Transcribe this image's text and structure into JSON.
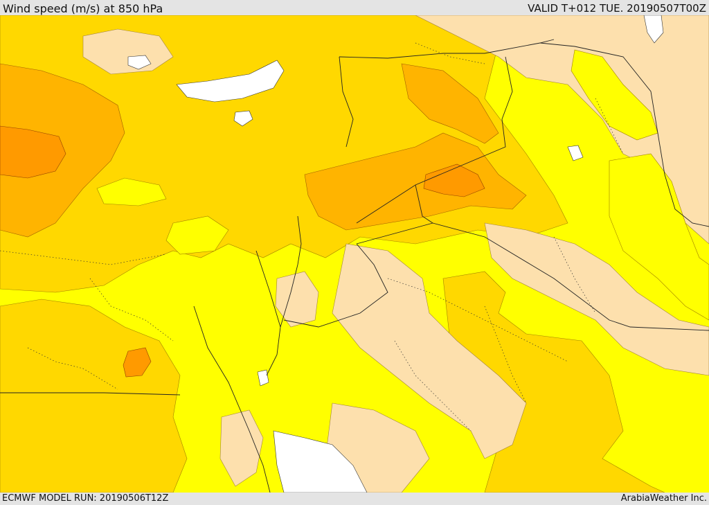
{
  "header": {
    "title": "Wind speed (m/s) at 850 hPa",
    "valid_time": "VALID T+012 TUE. 20190507T00Z"
  },
  "footer": {
    "model_run": "ECMWF MODEL RUN: 20190506T12Z",
    "credit": "ArabiaWeather Inc."
  },
  "map": {
    "colors": {
      "calm": "#fde0ad",
      "light": "#ffff00",
      "moderate": "#ffd800",
      "strong": "#ffb400",
      "very_strong": "#ff9a00",
      "water_low_wind": "#ffffff",
      "border": "#222222"
    }
  }
}
